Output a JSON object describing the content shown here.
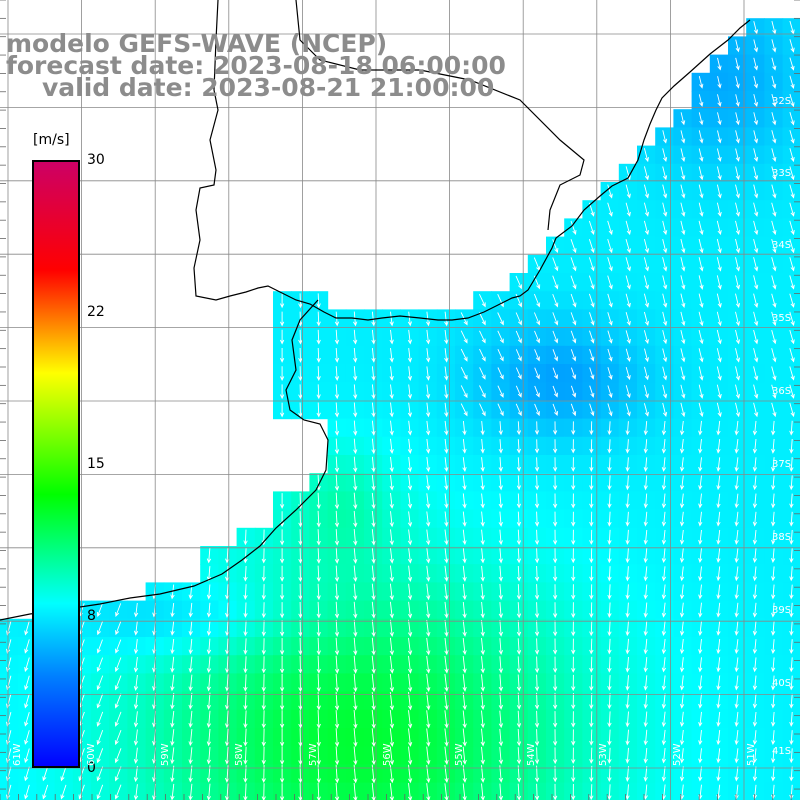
{
  "title": {
    "line1": "modelo GEFS-WAVE (NCEP)",
    "line2": "forecast date: 2023-08-18 06:00:00",
    "line3": "valid date: 2023-08-21 21:00:00"
  },
  "colorbar": {
    "unit": "[m/s]",
    "min": 0,
    "max": 30,
    "ticks": [
      "30",
      "22",
      "15",
      "8",
      "0"
    ],
    "colors": [
      "#0000ff",
      "#0080ff",
      "#00ffff",
      "#00ff00",
      "#ffff00",
      "#ff0000",
      "#cc0066"
    ]
  },
  "lat_labels": [
    "32S",
    "33S",
    "34S",
    "35S",
    "36S",
    "37S",
    "38S",
    "39S",
    "40S",
    "41S"
  ],
  "lon_labels": [
    "61W",
    "60W",
    "59W",
    "58W",
    "57W",
    "56W",
    "55W",
    "54W",
    "53W",
    "52W",
    "51W"
  ],
  "colors": {
    "land": "#ffffff",
    "grid": "#888888",
    "coast": "#000000",
    "arrow": "#ffffff"
  }
}
